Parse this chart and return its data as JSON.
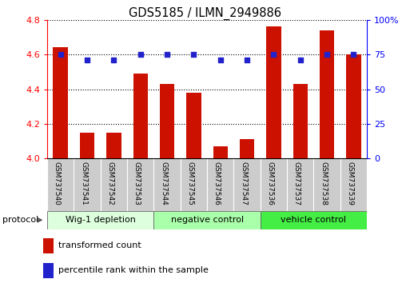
{
  "title": "GDS5185 / ILMN_2949886",
  "samples": [
    "GSM737540",
    "GSM737541",
    "GSM737542",
    "GSM737543",
    "GSM737544",
    "GSM737545",
    "GSM737546",
    "GSM737547",
    "GSM737536",
    "GSM737537",
    "GSM737538",
    "GSM737539"
  ],
  "bar_values": [
    4.64,
    4.15,
    4.15,
    4.49,
    4.43,
    4.38,
    4.07,
    4.11,
    4.76,
    4.43,
    4.74,
    4.6
  ],
  "dot_values": [
    75,
    71,
    71,
    75,
    75,
    75,
    71,
    71,
    75,
    71,
    75,
    75
  ],
  "ylim_left": [
    4.0,
    4.8
  ],
  "ylim_right": [
    0,
    100
  ],
  "yticks_left": [
    4.0,
    4.2,
    4.4,
    4.6,
    4.8
  ],
  "yticks_right": [
    0,
    25,
    50,
    75,
    100
  ],
  "ytick_labels_right": [
    "0",
    "25",
    "50",
    "75",
    "100%"
  ],
  "bar_color": "#cc1100",
  "dot_color": "#2222cc",
  "groups": [
    {
      "label": "Wig-1 depletion",
      "start": 0,
      "end": 3,
      "color": "#ddffdd"
    },
    {
      "label": "negative control",
      "start": 4,
      "end": 7,
      "color": "#aaffaa"
    },
    {
      "label": "vehicle control",
      "start": 8,
      "end": 11,
      "color": "#44ee44"
    }
  ],
  "protocol_label": "protocol",
  "legend_bar_label": "transformed count",
  "legend_dot_label": "percentile rank within the sample",
  "cell_bg": "#cccccc",
  "cell_edge": "#ffffff"
}
